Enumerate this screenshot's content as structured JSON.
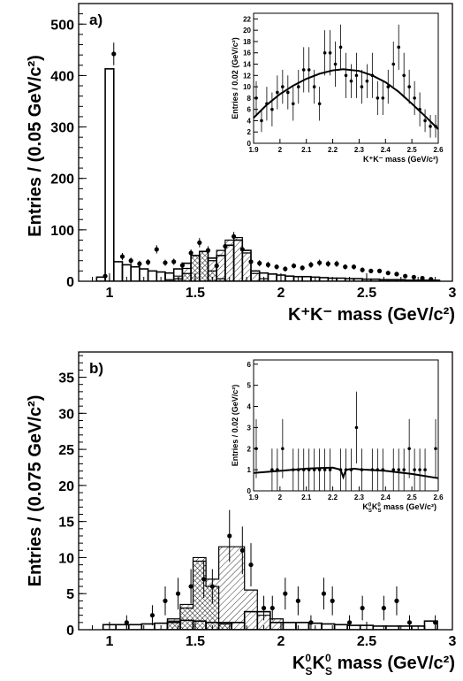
{
  "chart_data": [
    {
      "id": "a",
      "type": "bar",
      "panel_label": "a)",
      "xlabel": "K⁺K⁻ mass (GeV/c²)",
      "ylabel": "Entries / (0.05 GeV/c²)",
      "xlim": [
        0.82,
        3.0
      ],
      "ylim": [
        0,
        540
      ],
      "xticks": [
        1,
        1.5,
        2,
        2.5,
        3
      ],
      "xtick_labels": [
        "1",
        "1.5",
        "2",
        "2.5",
        "3"
      ],
      "yticks": [
        0,
        100,
        200,
        300,
        400,
        500
      ],
      "ytick_labels": [
        "0",
        "100",
        "200",
        "300",
        "400",
        "500"
      ],
      "bin_width": 0.05,
      "series": [
        {
          "kind": "open-histogram",
          "x": [
            0.95,
            1.0,
            1.05,
            1.1,
            1.15,
            1.2,
            1.25,
            1.3,
            1.35,
            1.4,
            1.45,
            1.5,
            1.55,
            1.6,
            1.65,
            1.7,
            1.75,
            1.8,
            1.85,
            1.9,
            1.95,
            2.0,
            2.05,
            2.1,
            2.15,
            2.2,
            2.25,
            2.3,
            2.35,
            2.4,
            2.45,
            2.5,
            2.55,
            2.6,
            2.65,
            2.7,
            2.75,
            2.8,
            2.85,
            2.9
          ],
          "values": [
            8,
            413,
            38,
            32,
            28,
            24,
            20,
            18,
            16,
            24,
            35,
            50,
            58,
            45,
            50,
            70,
            80,
            60,
            20,
            16,
            14,
            12,
            10,
            9,
            9,
            8,
            7,
            6,
            6,
            5,
            5,
            4,
            4,
            3,
            3,
            3,
            2,
            2,
            2,
            2
          ]
        },
        {
          "kind": "cross-hatched-histogram",
          "x": [
            1.4,
            1.45,
            1.5,
            1.55,
            1.6,
            1.65
          ],
          "values": [
            5,
            15,
            50,
            58,
            20,
            5
          ]
        },
        {
          "kind": "hatched-histogram",
          "x": [
            1.35,
            1.4,
            1.45,
            1.5,
            1.55,
            1.6,
            1.65,
            1.7,
            1.75,
            1.8,
            1.85,
            1.9
          ],
          "values": [
            3,
            10,
            25,
            40,
            40,
            40,
            60,
            80,
            85,
            55,
            15,
            5
          ]
        },
        {
          "kind": "points",
          "x": [
            0.975,
            1.025,
            1.075,
            1.125,
            1.175,
            1.225,
            1.275,
            1.325,
            1.375,
            1.425,
            1.475,
            1.525,
            1.575,
            1.625,
            1.675,
            1.725,
            1.775,
            1.825,
            1.875,
            1.925,
            1.975,
            2.025,
            2.075,
            2.125,
            2.175,
            2.225,
            2.275,
            2.325,
            2.375,
            2.425,
            2.475,
            2.525,
            2.575,
            2.625,
            2.675,
            2.725,
            2.775,
            2.825,
            2.875
          ],
          "values": [
            10,
            442,
            48,
            40,
            34,
            37,
            62,
            36,
            38,
            31,
            55,
            75,
            60,
            30,
            68,
            87,
            62,
            38,
            35,
            32,
            28,
            24,
            30,
            26,
            32,
            36,
            34,
            34,
            28,
            28,
            22,
            20,
            20,
            16,
            14,
            10,
            8,
            6,
            4
          ],
          "errors": [
            3,
            22,
            7,
            6,
            6,
            6,
            8,
            6,
            6,
            6,
            7,
            9,
            8,
            6,
            8,
            9,
            8,
            6,
            6,
            6,
            5,
            5,
            5,
            5,
            6,
            6,
            6,
            6,
            5,
            5,
            5,
            4,
            4,
            4,
            4,
            3,
            3,
            2,
            2
          ]
        }
      ],
      "inset": {
        "type": "scatter",
        "xlabel": "K⁺K⁻ mass (GeV/c²)",
        "ylabel": "Entries / 0.02 (GeV/c²)",
        "xlim": [
          1.9,
          2.6
        ],
        "ylim": [
          0,
          23
        ],
        "xticks": [
          1.9,
          2.0,
          2.1,
          2.2,
          2.3,
          2.4,
          2.5,
          2.6
        ],
        "xtick_labels": [
          "1.9",
          "2",
          "2.1",
          "2.2",
          "2.3",
          "2.4",
          "2.5",
          "2.6"
        ],
        "yticks": [
          0,
          2,
          4,
          6,
          8,
          10,
          12,
          14,
          16,
          18,
          20,
          22
        ],
        "ytick_labels": [
          "0",
          "2",
          "4",
          "6",
          "8",
          "10",
          "12",
          "14",
          "16",
          "18",
          "20",
          "22"
        ],
        "points": {
          "x": [
            1.91,
            1.93,
            1.95,
            1.97,
            1.99,
            2.01,
            2.03,
            2.05,
            2.07,
            2.09,
            2.11,
            2.13,
            2.15,
            2.17,
            2.19,
            2.21,
            2.23,
            2.25,
            2.27,
            2.29,
            2.31,
            2.33,
            2.35,
            2.37,
            2.39,
            2.41,
            2.43,
            2.45,
            2.47,
            2.49,
            2.51,
            2.53,
            2.55,
            2.57,
            2.59
          ],
          "values": [
            8,
            4,
            7,
            6,
            9,
            10,
            9,
            7,
            10,
            13,
            13,
            10,
            7,
            16,
            16,
            14,
            17,
            12,
            11,
            12,
            10,
            11,
            12,
            8,
            8,
            10,
            14,
            17,
            12,
            10,
            8,
            6,
            4,
            3,
            3
          ],
          "errors": [
            3,
            2,
            3,
            3,
            3,
            3,
            3,
            3,
            3,
            4,
            4,
            3,
            3,
            4,
            4,
            4,
            4,
            4,
            3,
            4,
            3,
            3,
            4,
            3,
            3,
            3,
            4,
            4,
            4,
            3,
            3,
            3,
            2,
            2,
            2
          ]
        },
        "fit": {
          "x": [
            1.9,
            1.95,
            2.0,
            2.05,
            2.1,
            2.15,
            2.2,
            2.24,
            2.3,
            2.35,
            2.4,
            2.45,
            2.5,
            2.55,
            2.6
          ],
          "values": [
            4.5,
            6.8,
            8.7,
            10.2,
            11.4,
            12.3,
            12.9,
            13.1,
            12.8,
            12.0,
            10.8,
            9.1,
            7.0,
            4.8,
            2.5
          ]
        }
      }
    },
    {
      "id": "b",
      "type": "bar",
      "panel_label": "b)",
      "xlabel_main": "K",
      "xlabel_sub": "S",
      "xlabel_sup": "0",
      "xlabel_tail": "mass (GeV/c²)",
      "ylabel": "Entries / (0.075 GeV/c²)",
      "xlim": [
        0.82,
        3.0
      ],
      "ylim": [
        0,
        38.5
      ],
      "xticks": [
        1,
        1.5,
        2,
        2.5,
        3
      ],
      "xtick_labels": [
        "1",
        "1.5",
        "2",
        "2.5",
        "3"
      ],
      "yticks": [
        0,
        5,
        10,
        15,
        20,
        25,
        30,
        35
      ],
      "ytick_labels": [
        "0",
        "5",
        "10",
        "15",
        "20",
        "25",
        "30",
        "35"
      ],
      "bin_width": 0.075,
      "series": [
        {
          "kind": "open-histogram",
          "x": [
            1.0,
            1.075,
            1.15,
            1.225,
            1.3,
            1.375,
            1.45,
            1.525,
            1.6,
            1.675,
            1.75,
            1.825,
            1.9,
            1.975,
            2.05,
            2.125,
            2.2,
            2.275,
            2.35,
            2.425,
            2.5,
            2.575,
            2.65,
            2.725,
            2.8,
            2.875
          ],
          "values": [
            0.7,
            0.7,
            0.7,
            0.8,
            0.9,
            1.0,
            1.3,
            1.2,
            1.0,
            1.0,
            1.0,
            2.5,
            2.5,
            1.0,
            1.0,
            1.0,
            0.9,
            0.8,
            0.7,
            0.6,
            0.6,
            0.5,
            0.5,
            0.5,
            0.5,
            1.2
          ]
        },
        {
          "kind": "cross-hatched-histogram",
          "x": [
            1.375,
            1.45,
            1.525,
            1.6,
            1.675
          ],
          "values": [
            1.2,
            3.0,
            9.5,
            6.0,
            0.8
          ]
        },
        {
          "kind": "hatched-histogram",
          "x": [
            1.375,
            1.45,
            1.525,
            1.6,
            1.675,
            1.75,
            1.825,
            1.9,
            1.975
          ],
          "values": [
            1.5,
            3.5,
            10.0,
            7.0,
            11.5,
            11.5,
            5.5,
            2.0,
            1.5
          ]
        },
        {
          "kind": "points",
          "x": [
            1.1,
            1.25,
            1.325,
            1.4,
            1.475,
            1.55,
            1.6,
            1.7,
            1.775,
            1.825,
            1.9,
            1.95,
            2.025,
            2.1,
            2.175,
            2.25,
            2.3,
            2.4,
            2.475,
            2.6,
            2.675,
            2.75,
            2.9
          ],
          "values": [
            1,
            2,
            4,
            5,
            6,
            7,
            6,
            13,
            11,
            9,
            3,
            3,
            5,
            4,
            1,
            5,
            4,
            1,
            3,
            3,
            4,
            1,
            1
          ],
          "errors": [
            1,
            1.4,
            2,
            2.2,
            2.4,
            2.6,
            2.4,
            3.6,
            3.3,
            3,
            1.7,
            1.7,
            2.2,
            2,
            1,
            2.2,
            2,
            1,
            1.7,
            1.7,
            2,
            1,
            1
          ]
        }
      ],
      "inset": {
        "type": "scatter",
        "xlabel_main": "K",
        "xlabel_sub": "S",
        "xlabel_sup": "0",
        "xlabel_tail": "mass (GeV/c²)",
        "ylabel": "Entries / 0.02 (GeV/c²)",
        "xlim": [
          1.9,
          2.6
        ],
        "ylim": [
          0,
          6.2
        ],
        "xticks": [
          1.9,
          2.0,
          2.1,
          2.2,
          2.3,
          2.4,
          2.5,
          2.6
        ],
        "xtick_labels": [
          "1.9",
          "2",
          "2.1",
          "2.2",
          "2.3",
          "2.4",
          "2.5",
          "2.6"
        ],
        "yticks": [
          0,
          1,
          2,
          3,
          4,
          5,
          6
        ],
        "ytick_labels": [
          "0",
          "1",
          "2",
          "3",
          "4",
          "5",
          "6"
        ],
        "points": {
          "x": [
            1.91,
            1.97,
            1.99,
            2.01,
            2.05,
            2.07,
            2.09,
            2.11,
            2.13,
            2.15,
            2.17,
            2.19,
            2.23,
            2.25,
            2.27,
            2.29,
            2.31,
            2.35,
            2.37,
            2.39,
            2.43,
            2.45,
            2.47,
            2.49,
            2.51,
            2.53,
            2.55,
            2.59
          ],
          "values": [
            2,
            1,
            1,
            2,
            1,
            1,
            1,
            1,
            1,
            1,
            1,
            1,
            1,
            1,
            1,
            3,
            1,
            1,
            1,
            1,
            1,
            1,
            1,
            2,
            1,
            1,
            1,
            2
          ],
          "errors": [
            1.4,
            1,
            1,
            1.4,
            1,
            1,
            1,
            1,
            1,
            1,
            1,
            1,
            1,
            1,
            1,
            1.7,
            1,
            1,
            1,
            1,
            1,
            1,
            1,
            1.4,
            1,
            1,
            1,
            1.4
          ]
        },
        "fit": {
          "x": [
            1.9,
            2.0,
            2.1,
            2.15,
            2.2,
            2.23,
            2.24,
            2.25,
            2.28,
            2.3,
            2.4,
            2.5,
            2.6
          ],
          "values": [
            0.85,
            0.95,
            1.05,
            1.08,
            1.1,
            1.0,
            0.65,
            1.0,
            1.05,
            1.02,
            0.95,
            0.8,
            0.6
          ]
        }
      }
    }
  ]
}
